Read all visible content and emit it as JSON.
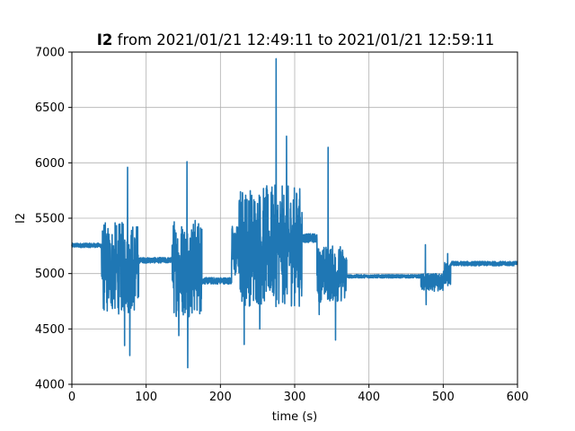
{
  "chart_data": {
    "type": "line",
    "title_bold": "I2",
    "title_rest": " from 2021/01/21 12:49:11 to 2021/01/21 12:59:11",
    "xlabel": "time (s)",
    "ylabel": "I2",
    "xlim": [
      0,
      600
    ],
    "ylim": [
      4000,
      7000
    ],
    "xticks": [
      0,
      100,
      200,
      300,
      400,
      500,
      600
    ],
    "yticks": [
      4000,
      4500,
      5000,
      5500,
      6000,
      6500,
      7000
    ],
    "xtick_labels": [
      "0",
      "100",
      "200",
      "300",
      "400",
      "500",
      "600"
    ],
    "ytick_labels": [
      "4000",
      "4500",
      "5000",
      "5500",
      "6000",
      "6500",
      "7000"
    ],
    "grid": true,
    "color": "#1f77b4",
    "series": [
      {
        "segments": [
          {
            "t0": 0,
            "t1": 40,
            "base": 5255,
            "amp": 20
          },
          {
            "t0": 40,
            "t1": 90,
            "base": 5050,
            "amp": 420,
            "peaks": [
              [
                75,
                5960
              ],
              [
                78,
                4260
              ],
              [
                71,
                4350
              ]
            ]
          },
          {
            "t0": 90,
            "t1": 135,
            "base": 5120,
            "amp": 25
          },
          {
            "t0": 135,
            "t1": 175,
            "base": 5060,
            "amp": 450,
            "peaks": [
              [
                155,
                6010
              ],
              [
                156,
                4150
              ],
              [
                144,
                4440
              ]
            ]
          },
          {
            "t0": 175,
            "t1": 215,
            "base": 4935,
            "amp": 30
          },
          {
            "t0": 215,
            "t1": 225,
            "base": 5200,
            "amp": 250
          },
          {
            "t0": 225,
            "t1": 310,
            "base": 5250,
            "amp": 550,
            "peaks": [
              [
                275,
                6940
              ],
              [
                289,
                6240
              ],
              [
                232,
                4360
              ],
              [
                253,
                4500
              ],
              [
                284,
                4900
              ]
            ]
          },
          {
            "t0": 310,
            "t1": 330,
            "base": 5320,
            "amp": 40
          },
          {
            "t0": 330,
            "t1": 370,
            "base": 5000,
            "amp": 260,
            "peaks": [
              [
                345,
                6140
              ],
              [
                355,
                4400
              ],
              [
                333,
                4630
              ]
            ]
          },
          {
            "t0": 370,
            "t1": 470,
            "base": 4975,
            "amp": 15
          },
          {
            "t0": 470,
            "t1": 500,
            "base": 4920,
            "amp": 80,
            "peaks": [
              [
                476,
                5260
              ],
              [
                477,
                4720
              ]
            ]
          },
          {
            "t0": 500,
            "t1": 510,
            "base": 5000,
            "amp": 120,
            "peaks": [
              [
                506,
                5180
              ]
            ]
          },
          {
            "t0": 510,
            "t1": 600,
            "base": 5090,
            "amp": 20
          }
        ]
      }
    ]
  }
}
